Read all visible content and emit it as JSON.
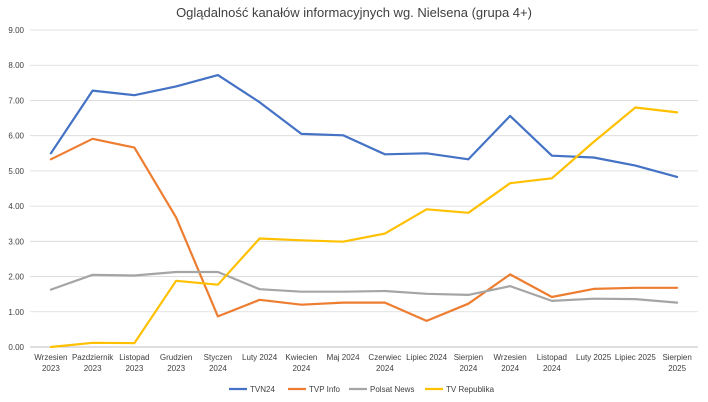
{
  "chart_data": {
    "type": "line",
    "title": "Oglądalność  kanałów informacyjnych  wg. Nielsena (grupa 4+)",
    "xlabel": "",
    "ylabel": "",
    "ylim": [
      0,
      9
    ],
    "yticks": [
      "0.00",
      "1.00",
      "2.00",
      "3.00",
      "4.00",
      "5.00",
      "6.00",
      "7.00",
      "8.00",
      "9.00"
    ],
    "grid": true,
    "legend_position": "bottom",
    "categories": [
      [
        "Wrzesien",
        "2023"
      ],
      [
        "Pazdziernik",
        "2023"
      ],
      [
        "Listopad",
        "2023"
      ],
      [
        "Grudzien",
        "2023"
      ],
      [
        "Styczen",
        "2024"
      ],
      [
        "Luty 2024"
      ],
      [
        "Kwiecien",
        "2024"
      ],
      [
        "Maj 2024"
      ],
      [
        "Czerwiec",
        "2024"
      ],
      [
        "Lipiec 2024"
      ],
      [
        "Sierpien",
        "2024"
      ],
      [
        "Wrzesien",
        "2024"
      ],
      [
        "Listopad",
        "2024"
      ],
      [
        "Luty 2025"
      ],
      [
        "Lipiec 2025"
      ],
      [
        "Sierpien",
        "2025"
      ]
    ],
    "series": [
      {
        "name": "TVN24",
        "color": "#4472C4",
        "values": [
          5.5,
          7.28,
          7.15,
          7.4,
          7.72,
          6.95,
          6.05,
          6.01,
          5.47,
          5.5,
          5.33,
          6.56,
          5.43,
          5.38,
          5.15,
          4.83
        ]
      },
      {
        "name": "TVP Info",
        "color": "#ED7D31",
        "values": [
          5.33,
          5.91,
          5.66,
          3.68,
          0.87,
          1.34,
          1.2,
          1.26,
          1.26,
          0.74,
          1.23,
          2.06,
          1.42,
          1.65,
          1.68,
          1.68
        ]
      },
      {
        "name": "Polsat News",
        "color": "#A5A5A5",
        "values": [
          1.63,
          2.05,
          2.03,
          2.13,
          2.13,
          1.64,
          1.57,
          1.57,
          1.59,
          1.51,
          1.48,
          1.73,
          1.31,
          1.37,
          1.36,
          1.26
        ]
      },
      {
        "name": "TV Republika",
        "color": "#FFC000",
        "values": [
          0.0,
          0.12,
          0.11,
          1.88,
          1.77,
          3.08,
          3.03,
          2.99,
          3.22,
          3.91,
          3.81,
          4.65,
          4.79,
          5.82,
          6.8,
          6.66
        ]
      }
    ]
  }
}
